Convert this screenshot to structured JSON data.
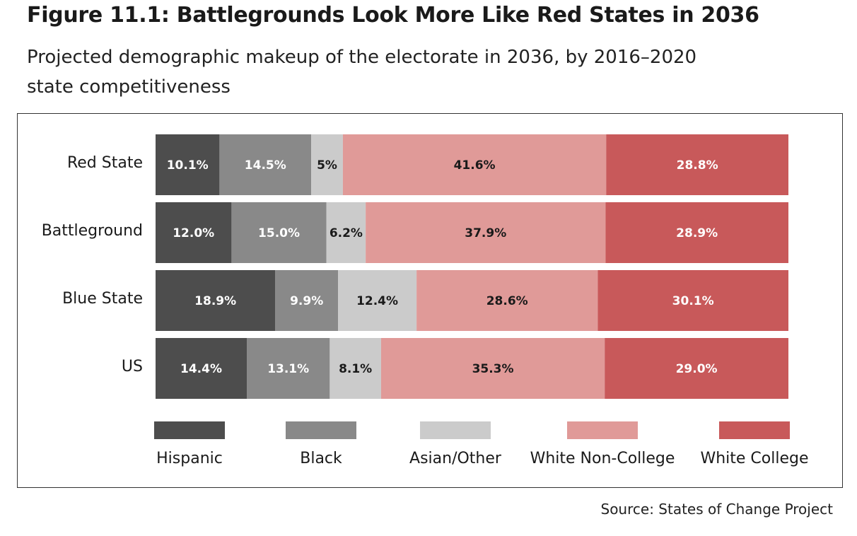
{
  "title": "Figure 11.1: Battlegrounds Look More Like Red States in 2036",
  "subtitle": "Projected demographic makeup of the electorate in 2036, by 2016–2020 state competitiveness",
  "source": "Source: States of Change Project",
  "chart_data": {
    "type": "bar",
    "orientation": "horizontal",
    "stacked": true,
    "categories": [
      "Red State",
      "Battleground",
      "Blue State",
      "US"
    ],
    "series": [
      {
        "name": "Hispanic",
        "color": "#4d4d4d",
        "label_color": "#ffffff",
        "values": [
          10.1,
          12.0,
          18.9,
          14.4
        ],
        "labels": [
          "10.1%",
          "12.0%",
          "18.9%",
          "14.4%"
        ]
      },
      {
        "name": "Black",
        "color": "#898989",
        "label_color": "#ffffff",
        "values": [
          14.5,
          15.0,
          9.9,
          13.1
        ],
        "labels": [
          "14.5%",
          "15.0%",
          "9.9%",
          "13.1%"
        ]
      },
      {
        "name": "Asian/Other",
        "color": "#cbcbcb",
        "label_color": "#1a1a1a",
        "values": [
          5,
          6.2,
          12.4,
          8.1
        ],
        "labels": [
          "5%",
          "6.2%",
          "12.4%",
          "8.1%"
        ]
      },
      {
        "name": "White Non-College",
        "color": "#e09a98",
        "label_color": "#1a1a1a",
        "values": [
          41.6,
          37.9,
          28.6,
          35.3
        ],
        "labels": [
          "41.6%",
          "37.9%",
          "28.6%",
          "35.3%"
        ]
      },
      {
        "name": "White College",
        "color": "#c8595a",
        "label_color": "#ffffff",
        "values": [
          28.8,
          28.9,
          30.1,
          29.0
        ],
        "labels": [
          "28.8%",
          "28.9%",
          "30.1%",
          "29.0%"
        ]
      }
    ],
    "xlim": [
      0,
      100
    ],
    "legend_position": "bottom",
    "grid": false
  }
}
